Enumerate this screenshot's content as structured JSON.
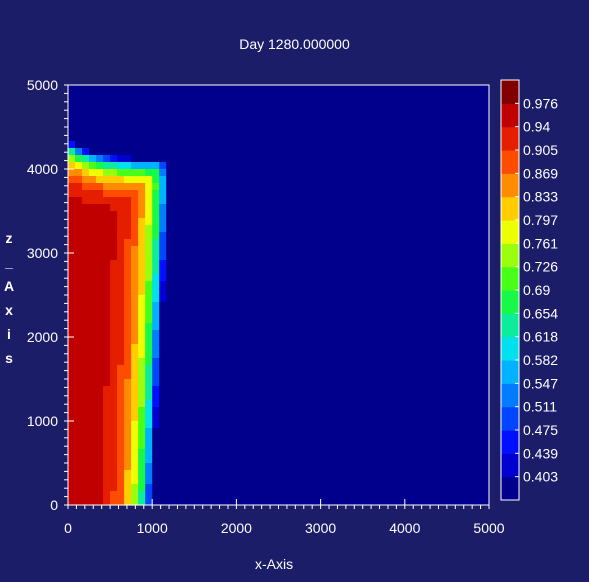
{
  "chart_data": {
    "type": "heatmap",
    "title": "Day 1280.000000",
    "xlabel": "x-Axis",
    "ylabel": "z-Axis",
    "xlim": [
      0,
      5000
    ],
    "ylim": [
      0,
      5000
    ],
    "x_ticks": [
      "0",
      "1000",
      "2000",
      "3000",
      "4000",
      "5000"
    ],
    "y_ticks": [
      "0",
      "1000",
      "2000",
      "3000",
      "4000",
      "5000"
    ],
    "colorbar": {
      "range": [
        0.385,
        0.994
      ],
      "labels": [
        "0.976",
        "0.94",
        "0.905",
        "0.869",
        "0.833",
        "0.797",
        "0.761",
        "0.726",
        "0.69",
        "0.654",
        "0.618",
        "0.582",
        "0.547",
        "0.511",
        "0.475",
        "0.439",
        "0.403"
      ]
    },
    "field_description_values": {
      "background_low": 0.4,
      "interior_high": 0.96,
      "interior_peak": 0.985,
      "front_x_at_bottom": 1000,
      "front_z_at_right": 4100
    },
    "colors": {
      "background": "#1b1d68"
    }
  }
}
